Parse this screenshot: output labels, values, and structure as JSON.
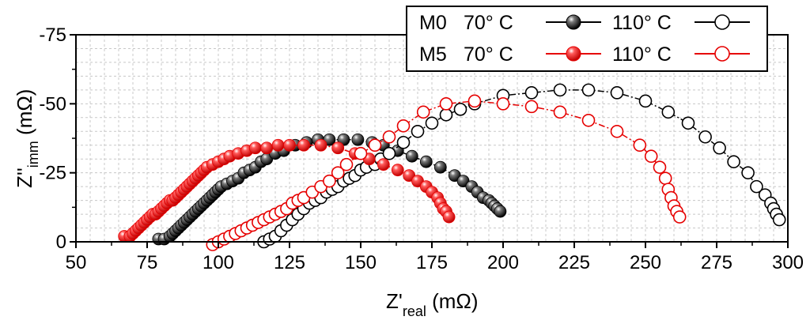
{
  "chart_data": {
    "type": "scatter",
    "xlabel": {
      "main": "Z'",
      "sub": "real",
      "unit": " (mΩ)"
    },
    "ylabel": {
      "main": "Z''",
      "sub": "imm",
      "unit": " (mΩ)"
    },
    "xlim": [
      50,
      300
    ],
    "ylim": [
      0,
      -75
    ],
    "x_ticks": [
      50,
      75,
      100,
      125,
      150,
      175,
      200,
      225,
      250,
      275,
      300
    ],
    "y_ticks": [
      0,
      -25,
      -50,
      -75
    ],
    "grid": true,
    "legend": {
      "placement": "top-right",
      "rows": [
        {
          "label": "M0",
          "entries": [
            "70° C",
            "110° C"
          ]
        },
        {
          "label": "M5",
          "entries": [
            "70° C",
            "110° C"
          ]
        }
      ]
    },
    "series": [
      {
        "color": "#000000",
        "filled": true,
        "x": [
          79,
          81,
          83,
          84,
          85,
          86,
          87,
          88,
          89,
          90,
          91,
          92,
          93,
          94,
          95,
          96,
          97,
          98,
          99,
          100,
          101,
          103,
          105,
          107,
          109,
          111,
          113,
          115,
          117,
          120,
          123,
          127,
          131,
          135,
          139,
          144,
          149,
          154,
          158,
          163,
          168,
          173,
          178,
          183,
          186,
          189,
          191,
          193,
          195,
          196,
          197,
          198,
          199
        ],
        "y": [
          -1,
          -1,
          -2,
          -3,
          -4,
          -5,
          -6,
          -7,
          -8,
          -9,
          -10,
          -11,
          -12,
          -13,
          -14,
          -15,
          -16,
          -17,
          -18,
          -19,
          -20,
          -21,
          -22,
          -23,
          -25,
          -26,
          -27,
          -29,
          -30,
          -32,
          -33,
          -35,
          -36,
          -37,
          -37,
          -37,
          -37,
          -36,
          -35,
          -33,
          -31,
          -29,
          -27,
          -24,
          -22,
          -20,
          -18,
          -16,
          -15,
          -14,
          -13,
          -12,
          -11
        ]
      },
      {
        "color": "#000000",
        "filled": false,
        "x": [
          116,
          118,
          120,
          122,
          124,
          126,
          128,
          130,
          132,
          134,
          136,
          138,
          140,
          142,
          144,
          146,
          148,
          150,
          152,
          155,
          157,
          160,
          165,
          170,
          175,
          180,
          185,
          190,
          200,
          210,
          220,
          230,
          240,
          250,
          258,
          265,
          271,
          276,
          281,
          286,
          289,
          292,
          294,
          295,
          296,
          297
        ],
        "y": [
          0,
          -1,
          -2,
          -4,
          -6,
          -8,
          -10,
          -12,
          -14,
          -15,
          -16,
          -18,
          -19,
          -20,
          -22,
          -23,
          -24,
          -26,
          -27,
          -28,
          -30,
          -32,
          -36,
          -40,
          -43,
          -46,
          -48,
          -50,
          -53,
          -54,
          -55,
          -55,
          -54,
          -51,
          -47,
          -43,
          -38,
          -34,
          -29,
          -25,
          -20,
          -17,
          -14,
          -12,
          -10,
          -8
        ]
      },
      {
        "color": "#e60000",
        "filled": true,
        "x": [
          67,
          69,
          70,
          71,
          72,
          73,
          74,
          75,
          76,
          77,
          78,
          79,
          80,
          81,
          82,
          83,
          84,
          85,
          86,
          87,
          88,
          89,
          90,
          91,
          92,
          93,
          94,
          95,
          96,
          98,
          100,
          102,
          104,
          107,
          110,
          113,
          117,
          121,
          125,
          130,
          136,
          142,
          148,
          153,
          158,
          163,
          167,
          170,
          173,
          175,
          177,
          178,
          179,
          180,
          181
        ],
        "y": [
          -2,
          -2,
          -3,
          -4,
          -5,
          -6,
          -7,
          -8,
          -9,
          -10,
          -10,
          -11,
          -12,
          -13,
          -14,
          -15,
          -15,
          -16,
          -17,
          -18,
          -19,
          -20,
          -21,
          -22,
          -23,
          -24,
          -25,
          -26,
          -27,
          -28,
          -29,
          -30,
          -31,
          -32,
          -33,
          -34,
          -34,
          -35,
          -35,
          -35,
          -35,
          -34,
          -32,
          -30,
          -28,
          -26,
          -24,
          -22,
          -20,
          -18,
          -16,
          -14,
          -12,
          -11,
          -9
        ]
      },
      {
        "color": "#e60000",
        "filled": false,
        "x": [
          98,
          100,
          102,
          104,
          106,
          108,
          110,
          112,
          114,
          116,
          118,
          120,
          122,
          124,
          126,
          128,
          130,
          133,
          136,
          139,
          142,
          145,
          150,
          155,
          160,
          165,
          172,
          180,
          190,
          200,
          210,
          220,
          230,
          240,
          248,
          252,
          255,
          257,
          258,
          259,
          260,
          261,
          262
        ],
        "y": [
          1,
          0,
          -1,
          -2,
          -3,
          -4,
          -5,
          -6,
          -7,
          -8,
          -9,
          -10,
          -11,
          -12,
          -14,
          -15,
          -16,
          -18,
          -20,
          -22,
          -25,
          -28,
          -32,
          -35,
          -38,
          -42,
          -47,
          -50,
          -51,
          -50,
          -49,
          -47,
          -44,
          -40,
          -35,
          -31,
          -27,
          -23,
          -19,
          -16,
          -13,
          -11,
          -9
        ]
      }
    ]
  }
}
